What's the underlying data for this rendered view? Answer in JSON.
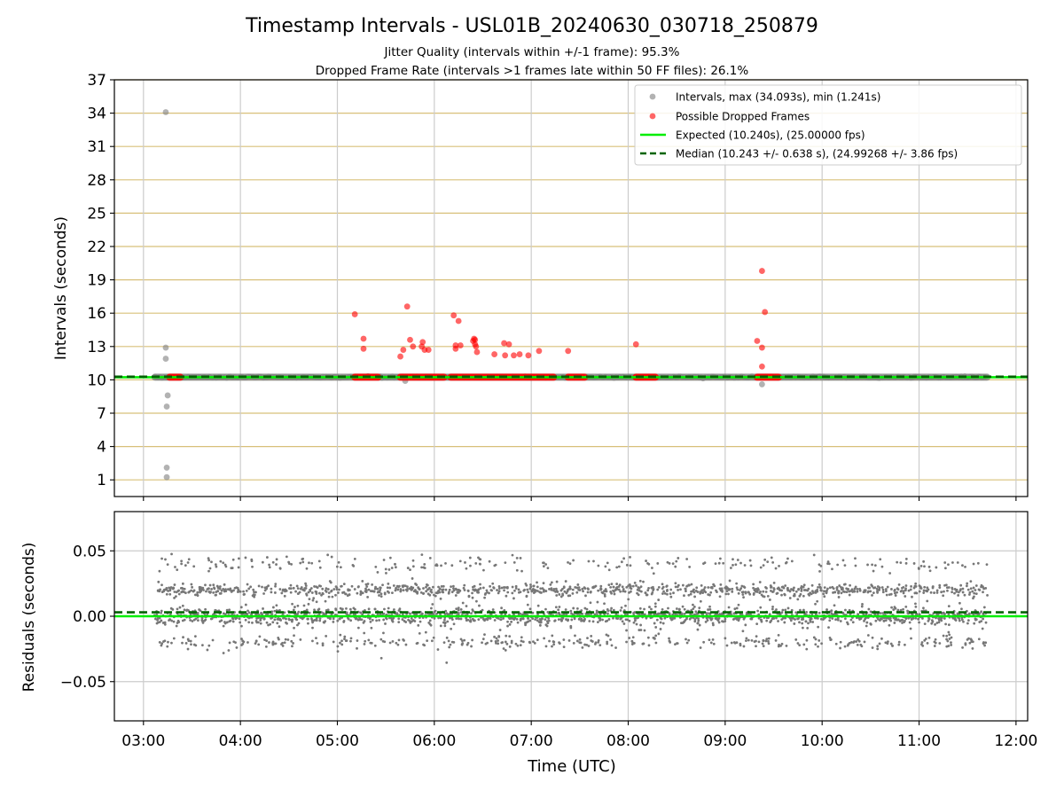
{
  "figure": {
    "title": "Timestamp Intervals - USL01B_20240630_030718_250879",
    "subtitle_1": "Jitter Quality (intervals within +/-1 frame): 95.3%",
    "subtitle_2": "Dropped Frame Rate (intervals >1 frames late within 50 FF files): 26.1%"
  },
  "chart_data": [
    {
      "type": "scatter",
      "panel": "intervals",
      "ylabel": "Intervals (seconds)",
      "xlabel": "",
      "xlim_hours": [
        2.7,
        12.12
      ],
      "ylim": [
        -0.5,
        37
      ],
      "yticks": [
        1,
        4,
        7,
        10,
        13,
        16,
        19,
        22,
        25,
        28,
        31,
        34,
        37
      ],
      "xticks_hours": [
        3,
        4,
        5,
        6,
        7,
        8,
        9,
        10,
        11,
        12
      ],
      "xtick_labels": [
        "03:00",
        "04:00",
        "05:00",
        "06:00",
        "07:00",
        "08:00",
        "09:00",
        "10:00",
        "11:00",
        "12:00"
      ],
      "grid": "x and y",
      "legend_position": "top-right",
      "colors": {
        "intervals": "#7f7f7f",
        "dropped": "#ff0000",
        "expected": "#00ee00",
        "median": "#006400",
        "hgrid": "#d8c07a",
        "vgrid": "#cccccc"
      },
      "legend": [
        "Intervals, max (34.093s), min (1.241s)",
        "Possible Dropped Frames",
        "Expected (10.240s), (25.00000 fps)",
        "Median (10.243 +/- 0.638 s), (24.99268 +/- 3.86 fps)"
      ],
      "series": [
        {
          "name": "Intervals, max (34.093s), min (1.241s)",
          "baseline_value": 10.24,
          "baseline_x_range_hours": [
            3.12,
            11.7
          ],
          "points": [
            {
              "x": 3.23,
              "y": 34.09
            },
            {
              "x": 3.23,
              "y": 12.9
            },
            {
              "x": 3.23,
              "y": 11.9
            },
            {
              "x": 3.25,
              "y": 8.6
            },
            {
              "x": 3.24,
              "y": 7.6
            },
            {
              "x": 3.24,
              "y": 2.1
            },
            {
              "x": 3.24,
              "y": 1.24
            },
            {
              "x": 5.7,
              "y": 9.9
            },
            {
              "x": 9.38,
              "y": 9.6
            }
          ]
        },
        {
          "name": "Possible Dropped Frames",
          "baseline_value": 10.24,
          "baseline_segments_hours": [
            [
              3.27,
              3.38
            ],
            [
              5.18,
              5.42
            ],
            [
              5.65,
              6.1
            ],
            [
              6.17,
              7.23
            ],
            [
              7.38,
              7.55
            ],
            [
              8.08,
              8.28
            ],
            [
              9.33,
              9.55
            ]
          ],
          "points": [
            {
              "x": 5.18,
              "y": 15.9
            },
            {
              "x": 5.27,
              "y": 13.7
            },
            {
              "x": 5.27,
              "y": 12.8
            },
            {
              "x": 5.65,
              "y": 12.1
            },
            {
              "x": 5.68,
              "y": 12.7
            },
            {
              "x": 5.72,
              "y": 16.6
            },
            {
              "x": 5.75,
              "y": 13.6
            },
            {
              "x": 5.78,
              "y": 13.0
            },
            {
              "x": 5.87,
              "y": 13.0
            },
            {
              "x": 5.88,
              "y": 13.4
            },
            {
              "x": 5.9,
              "y": 12.7
            },
            {
              "x": 5.94,
              "y": 12.7
            },
            {
              "x": 6.2,
              "y": 15.8
            },
            {
              "x": 6.22,
              "y": 13.1
            },
            {
              "x": 6.22,
              "y": 12.8
            },
            {
              "x": 6.25,
              "y": 15.3
            },
            {
              "x": 6.27,
              "y": 13.1
            },
            {
              "x": 6.4,
              "y": 13.5
            },
            {
              "x": 6.41,
              "y": 13.7
            },
            {
              "x": 6.42,
              "y": 13.6
            },
            {
              "x": 6.42,
              "y": 13.2
            },
            {
              "x": 6.43,
              "y": 13.0
            },
            {
              "x": 6.44,
              "y": 12.5
            },
            {
              "x": 6.62,
              "y": 12.3
            },
            {
              "x": 6.72,
              "y": 13.3
            },
            {
              "x": 6.73,
              "y": 12.2
            },
            {
              "x": 6.77,
              "y": 13.2
            },
            {
              "x": 6.82,
              "y": 12.2
            },
            {
              "x": 6.88,
              "y": 12.3
            },
            {
              "x": 6.97,
              "y": 12.2
            },
            {
              "x": 7.08,
              "y": 12.6
            },
            {
              "x": 7.38,
              "y": 12.6
            },
            {
              "x": 8.08,
              "y": 13.2
            },
            {
              "x": 9.33,
              "y": 13.5
            },
            {
              "x": 9.38,
              "y": 12.9
            },
            {
              "x": 9.38,
              "y": 11.2
            },
            {
              "x": 9.38,
              "y": 19.8
            },
            {
              "x": 9.41,
              "y": 16.1
            }
          ]
        },
        {
          "name": "Expected (10.240s), (25.00000 fps)",
          "value": 10.24,
          "style": "solid"
        },
        {
          "name": "Median (10.243 +/- 0.638 s), (24.99268 +/- 3.86 fps)",
          "value": 10.243,
          "style": "dashed"
        }
      ]
    },
    {
      "type": "scatter",
      "panel": "residuals",
      "xlabel": "Time (UTC)",
      "ylabel": "Residuals (seconds)",
      "xlim_hours": [
        2.7,
        12.12
      ],
      "ylim": [
        -0.08,
        0.08
      ],
      "yticks": [
        -0.05,
        0.0,
        0.05
      ],
      "ytick_labels": [
        "−0.05",
        "0.00",
        "0.05"
      ],
      "xticks_hours": [
        3,
        4,
        5,
        6,
        7,
        8,
        9,
        10,
        11,
        12
      ],
      "xtick_labels": [
        "03:00",
        "04:00",
        "05:00",
        "06:00",
        "07:00",
        "08:00",
        "09:00",
        "10:00",
        "11:00",
        "12:00"
      ],
      "grid": "x and y",
      "x_range_hours": [
        3.12,
        11.7
      ],
      "residual_levels": [
        {
          "value": 0.0,
          "spread": 0.003,
          "weight": 0.45
        },
        {
          "value": 0.02,
          "spread": 0.0025,
          "weight": 0.3
        },
        {
          "value": -0.02,
          "spread": 0.0025,
          "weight": 0.1
        },
        {
          "value": 0.04,
          "spread": 0.003,
          "weight": 0.08
        },
        {
          "value": 0.0,
          "spread": 0.012,
          "weight": 0.07
        }
      ],
      "lines": [
        {
          "name": "Expected",
          "value": 0.0,
          "style": "solid",
          "color": "#00ee00"
        },
        {
          "name": "Median",
          "value": 0.003,
          "style": "dashed",
          "color": "#006400"
        }
      ]
    }
  ]
}
